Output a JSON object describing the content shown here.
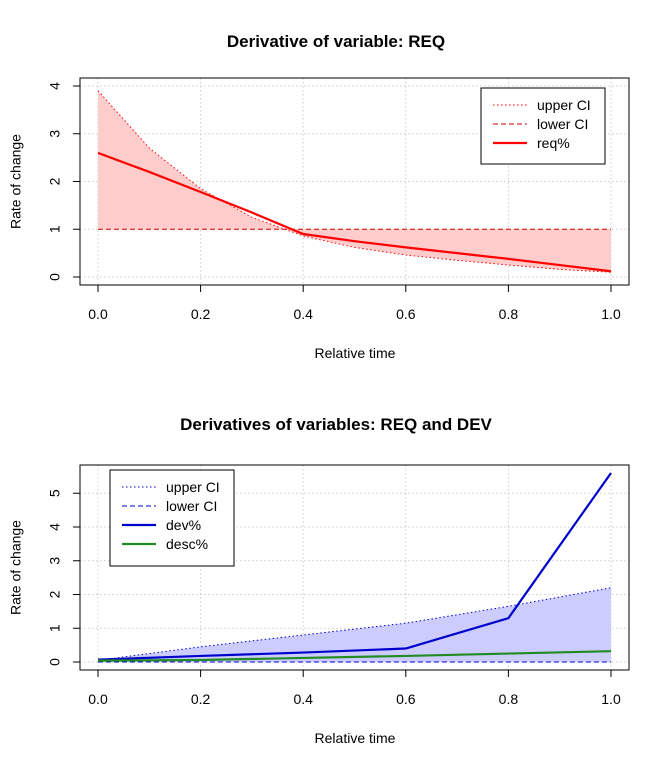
{
  "chart_data": [
    {
      "type": "line",
      "title": "Derivative of variable: REQ",
      "xlabel": "Relative time",
      "ylabel": "Rate of change",
      "xlim": [
        0,
        1
      ],
      "ylim": [
        0,
        4
      ],
      "x_ticks": [
        "0.0",
        "0.2",
        "0.4",
        "0.6",
        "0.8",
        "1.0"
      ],
      "y_ticks": [
        "0",
        "1",
        "2",
        "3",
        "4"
      ],
      "grid": true,
      "legend_position": "top-right",
      "band_fill_color": "#ffcccc",
      "x": [
        0.0,
        0.1,
        0.2,
        0.3,
        0.4,
        0.5,
        0.6,
        0.7,
        0.8,
        0.9,
        1.0
      ],
      "series": [
        {
          "name": "upper CI",
          "style": "dotted",
          "color": "#ff0000",
          "values": [
            3.9,
            2.7,
            1.85,
            1.25,
            0.86,
            0.62,
            0.46,
            0.35,
            0.25,
            0.16,
            0.1
          ]
        },
        {
          "name": "lower CI",
          "style": "dashed",
          "color": "#cc0000",
          "values": [
            1.0,
            1.0,
            1.0,
            1.0,
            1.0,
            1.0,
            1.0,
            1.0,
            1.0,
            1.0,
            1.0
          ]
        },
        {
          "name": "req%",
          "style": "solid",
          "color": "#ff0000",
          "values": [
            2.6,
            2.2,
            1.78,
            1.35,
            0.9,
            0.75,
            0.62,
            0.5,
            0.38,
            0.25,
            0.12
          ]
        }
      ]
    },
    {
      "type": "line",
      "title": "Derivatives of variables: REQ and DEV",
      "xlabel": "Relative time",
      "ylabel": "Rate of change",
      "xlim": [
        0,
        1
      ],
      "ylim": [
        0,
        5.6
      ],
      "x_ticks": [
        "0.0",
        "0.2",
        "0.4",
        "0.6",
        "0.8",
        "1.0"
      ],
      "y_ticks": [
        "0",
        "1",
        "2",
        "3",
        "4",
        "5"
      ],
      "grid": true,
      "legend_position": "top-left",
      "band_fill_color": "#ccccff",
      "x": [
        0.0,
        0.2,
        0.4,
        0.6,
        0.8,
        1.0
      ],
      "series": [
        {
          "name": "upper CI",
          "style": "dotted",
          "color": "#0000cc",
          "values": [
            0.05,
            0.45,
            0.8,
            1.15,
            1.65,
            2.2
          ]
        },
        {
          "name": "lower CI",
          "style": "dashed",
          "color": "#0000cc",
          "values": [
            0.0,
            0.0,
            0.0,
            0.0,
            0.0,
            0.0
          ]
        },
        {
          "name": "dev%",
          "style": "solid",
          "color": "#0000cc",
          "values": [
            0.07,
            0.18,
            0.28,
            0.4,
            1.3,
            5.6
          ]
        },
        {
          "name": "desc%",
          "style": "solid",
          "color": "#228b22",
          "values": [
            0.04,
            0.06,
            0.12,
            0.18,
            0.25,
            0.32
          ]
        }
      ]
    }
  ]
}
